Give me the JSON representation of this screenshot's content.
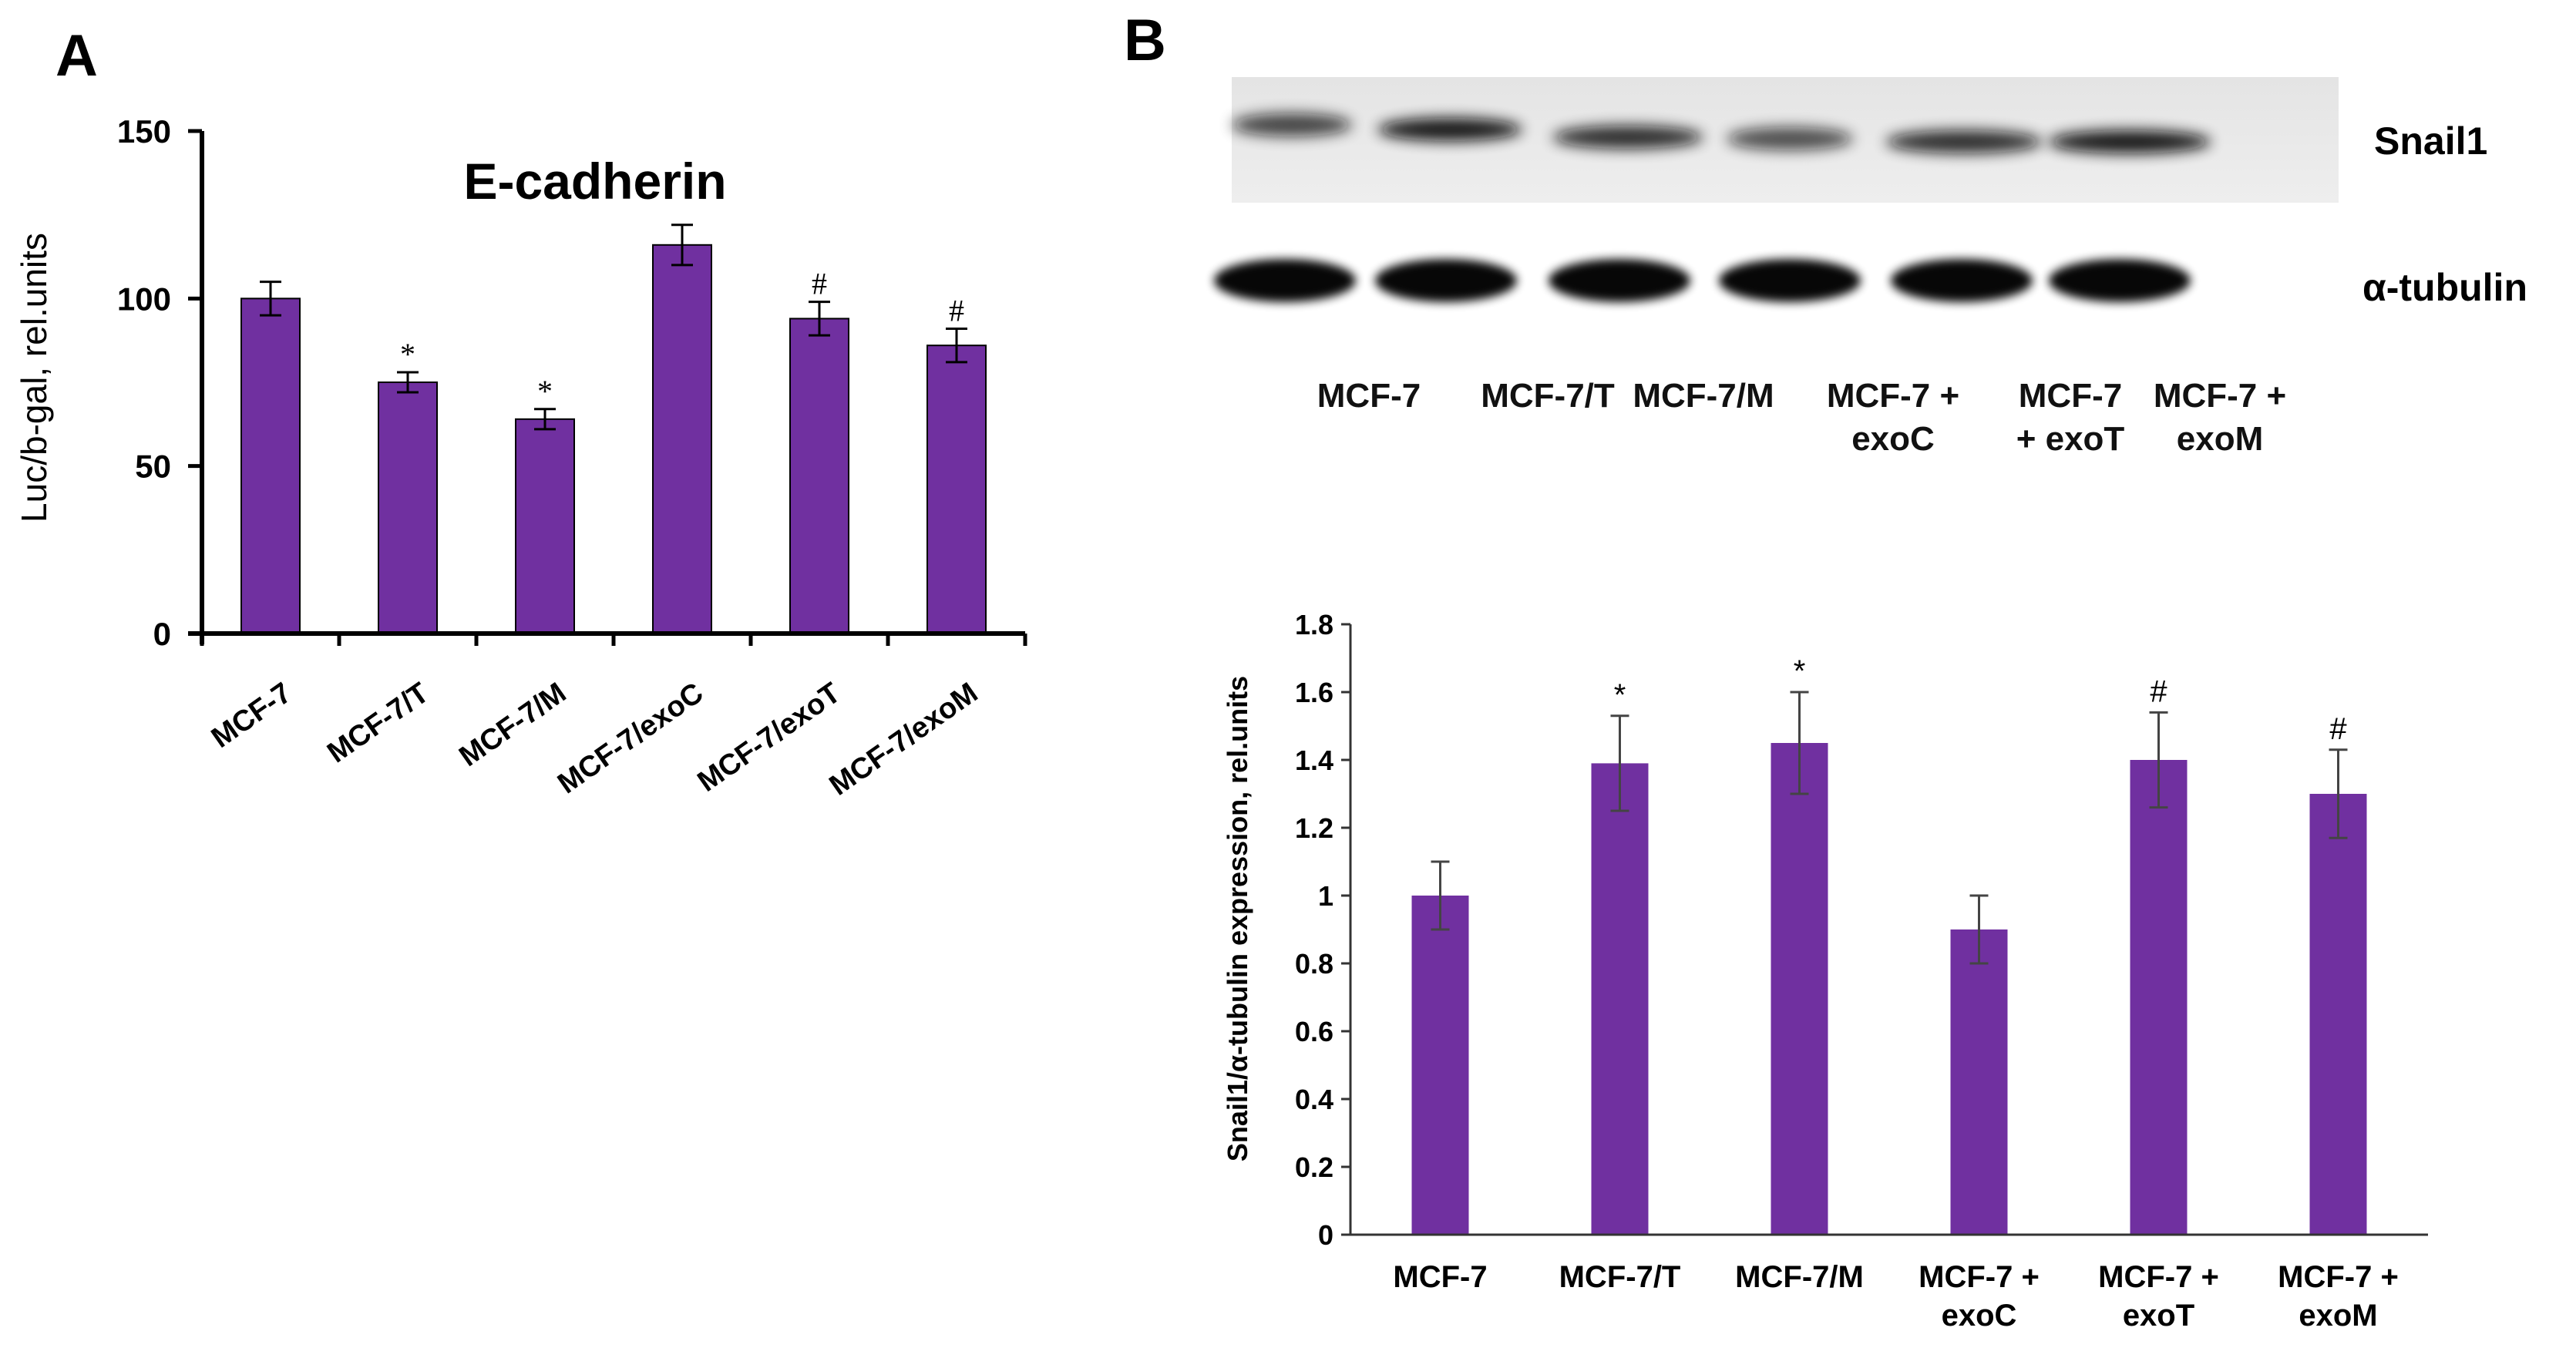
{
  "panels": {
    "a_letter": "A",
    "b_letter": "B"
  },
  "blot": {
    "labels": {
      "snail": "Snail1",
      "tubulin": "α-tubulin"
    },
    "lanes": [
      [
        "MCF-7"
      ],
      [
        "MCF-7/T"
      ],
      [
        "MCF-7/M"
      ],
      [
        "MCF-7 +",
        "exoC"
      ],
      [
        "MCF-7",
        "+ exoT"
      ],
      [
        "MCF-7 +",
        "exoM"
      ]
    ]
  },
  "colors": {
    "bar": "#7030a0",
    "axis": "#000000"
  },
  "chart_data": [
    {
      "type": "bar",
      "title": "E-cadherin",
      "xlabel": "",
      "ylabel": "Luc/b-gal,  rel.units",
      "ylim": [
        0,
        150
      ],
      "yticks": [
        0,
        50,
        100,
        150
      ],
      "categories": [
        "MCF-7",
        "MCF-7/T",
        "MCF-7/M",
        "MCF-7/exoC",
        "MCF-7/exoT",
        "MCF-7/exoM"
      ],
      "values": [
        100,
        75,
        64,
        116,
        94,
        86
      ],
      "errors": [
        5,
        3,
        3,
        6,
        5,
        5
      ],
      "annotations": [
        "",
        "*",
        "*",
        "",
        "#",
        "#"
      ]
    },
    {
      "type": "bar",
      "title": "",
      "xlabel": "",
      "ylabel": "Snail1/α-tubulin expression, rel.units",
      "ylim": [
        0,
        1.8
      ],
      "yticks": [
        "0",
        "0.2",
        "0.4",
        "0.6",
        "0.8",
        "1",
        "1.2",
        "1.4",
        "1.6",
        "1.8"
      ],
      "categories": [
        [
          "MCF-7"
        ],
        [
          "MCF-7/T"
        ],
        [
          "MCF-7/M"
        ],
        [
          "MCF-7 +",
          "exoC"
        ],
        [
          "MCF-7 +",
          "exoT"
        ],
        [
          "MCF-7 +",
          "exoM"
        ]
      ],
      "values": [
        1.0,
        1.39,
        1.45,
        0.9,
        1.4,
        1.3
      ],
      "errors": [
        0.1,
        0.14,
        0.15,
        0.1,
        0.14,
        0.13
      ],
      "annotations": [
        "",
        "*",
        "*",
        "",
        "#",
        "#"
      ]
    }
  ]
}
